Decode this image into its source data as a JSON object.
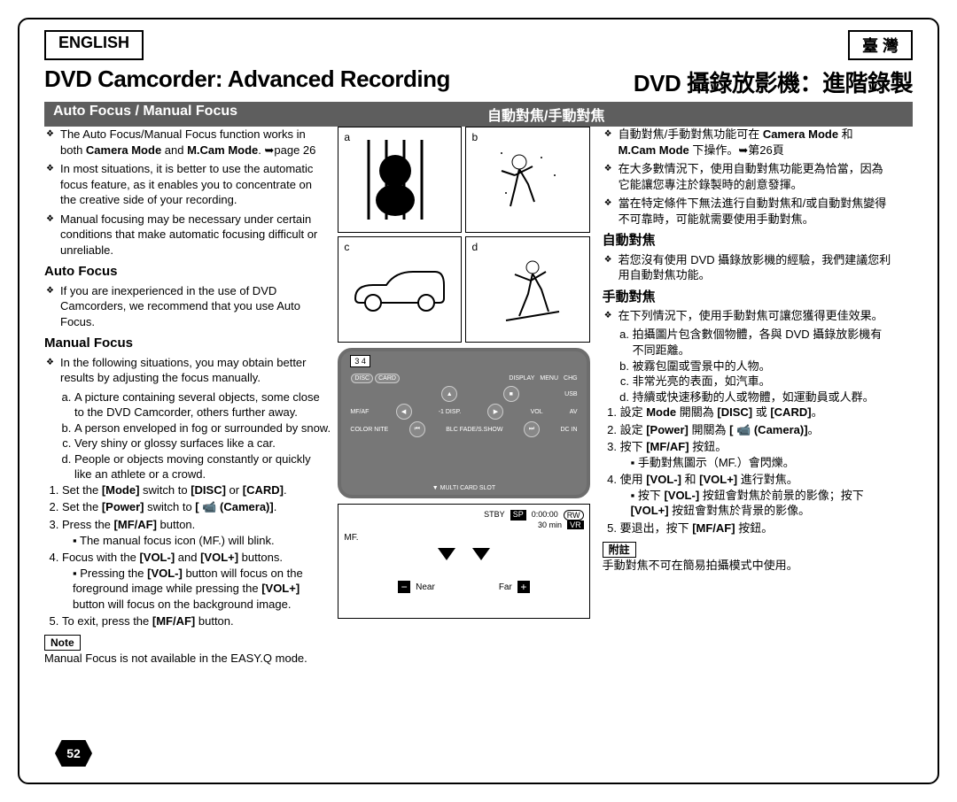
{
  "lang": {
    "left": "ENGLISH",
    "right": "臺 灣"
  },
  "titles": {
    "left": "DVD Camcorder: Advanced Recording",
    "right": "DVD 攝錄放影機：進階錄製"
  },
  "section": {
    "left": "Auto Focus / Manual Focus",
    "right": "自動對焦/手動對焦"
  },
  "left": {
    "bullets": [
      "The Auto Focus/Manual Focus function works in both <b>Camera Mode</b> and <b>M.Cam Mode</b>. ➥page 26",
      "In most situations, it is better to use the automatic focus feature, as it enables you to concentrate on the creative side of your recording.",
      "Manual focusing may be necessary under certain conditions that make automatic focusing difficult or unreliable."
    ],
    "af_heading": "Auto Focus",
    "af_bullet": "If you are inexperienced in the use of DVD Camcorders, we recommend that you use Auto Focus.",
    "mf_heading": "Manual Focus",
    "mf_bullet": "In the following situations, you may obtain better results by adjusting the focus manually.",
    "mf_abcd": [
      "A picture containing several objects, some close to the DVD Camcorder, others further away.",
      "A person enveloped in fog or surrounded by snow.",
      "Very shiny or glossy surfaces like a car.",
      "People or objects moving constantly or quickly like an athlete or a crowd."
    ],
    "steps": [
      "Set the <b>[Mode]</b> switch to <b>[DISC]</b> or <b>[CARD]</b>.",
      "Set the <b>[Power]</b> switch to <b>[ 📹 (Camera)]</b>.",
      "Press the <b>[MF/AF]</b> button.",
      "Focus with the <b>[VOL-]</b> and <b>[VOL+]</b> buttons.",
      "To exit, press the <b>[MF/AF]</b> button."
    ],
    "step3_sub": "The manual focus icon (MF.) will blink.",
    "step4_sub": "Pressing the <b>[VOL-]</b> button will focus on the foreground image while pressing the <b>[VOL+]</b> button will focus on the background image.",
    "note_label": "Note",
    "note_text": "Manual Focus is not available in the EASY.Q mode."
  },
  "right": {
    "bullets": [
      "自動對焦/手動對焦功能可在 <b>Camera Mode</b> 和 <b>M.Cam Mode</b> 下操作。➥第26頁",
      "在大多數情況下，使用自動對焦功能更為恰當，因為它能讓您專注於錄製時的創意發揮。",
      "當在特定條件下無法進行自動對焦和/或自動對焦變得不可靠時，可能就需要使用手動對焦。"
    ],
    "af_heading": "自動對焦",
    "af_bullet": "若您沒有使用 DVD 攝錄放影機的經驗，我們建議您利用自動對焦功能。",
    "mf_heading": "手動對焦",
    "mf_bullet": "在下列情況下，使用手動對焦可讓您獲得更佳效果。",
    "mf_abcd": [
      "拍攝圖片包含數個物體，各與 DVD 攝錄放影機有不同距離。",
      "被霧包圍或雪景中的人物。",
      "非常光亮的表面，如汽車。",
      "持續或快速移動的人或物體，如運動員或人群。"
    ],
    "steps": [
      "設定 <b>Mode</b> 開關為 <b>[DISC]</b> 或 <b>[CARD]</b>。",
      "設定 <b>[Power]</b> 開關為 <b>[ 📹 (Camera)]</b>。",
      "按下 <b>[MF/AF]</b> 按鈕。",
      "使用 <b>[VOL-]</b> 和 <b>[VOL+]</b> 進行對焦。",
      "要退出，按下 <b>[MF/AF]</b> 按鈕。"
    ],
    "step3_sub": "手動對焦圖示（MF.）會閃爍。",
    "step4_sub": "按下 <b>[VOL-]</b> 按鈕會對焦於前景的影像；按下 <b>[VOL+]</b> 按鈕會對焦於背景的影像。",
    "note_label": "附註",
    "note_text": "手動對焦不可在簡易拍攝模式中使用。"
  },
  "mid": {
    "letters": [
      "a",
      "b",
      "c",
      "d"
    ],
    "illust_captions": [
      "(gorilla behind bars)",
      "(skier in snow)",
      "(shiny car)",
      "(skier moving)"
    ],
    "cam_labels": {
      "nums": "3 4",
      "disc": "DISC",
      "card": "CARD",
      "display": "DISPLAY",
      "menu": "MENU",
      "chg": "CHG",
      "disp": "-1 DISP.",
      "mfaf": "MF/AF",
      "vol": "VOL",
      "usb": "USB",
      "av": "AV",
      "dcin": "DC IN",
      "colornite": "COLOR NITE",
      "blc": "BLC FADE/S.SHOW",
      "multi": "▼ MULTI CARD SLOT"
    },
    "display": {
      "stby": "STBY",
      "sp": "SP",
      "time": "0:00:00",
      "rw": "RW",
      "min": "30 min",
      "vr": "VR",
      "mf": "MF.",
      "near": "Near",
      "far": "Far"
    }
  },
  "page_num": "52"
}
